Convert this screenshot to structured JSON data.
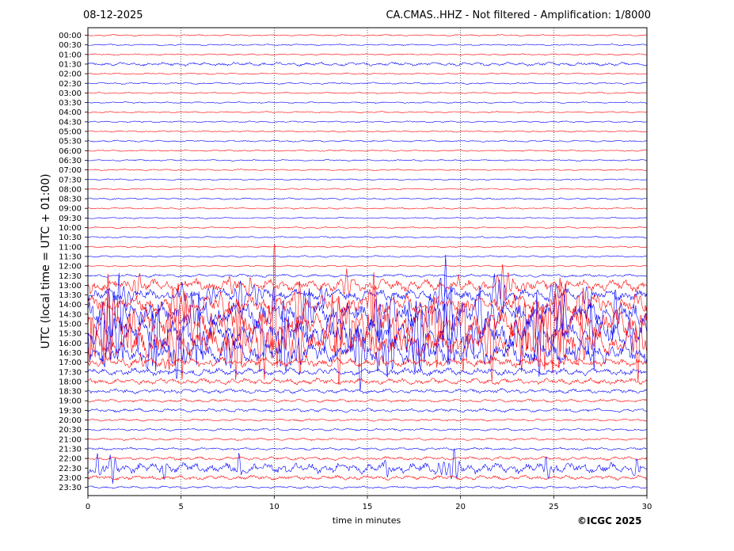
{
  "header": {
    "date": "08-12-2025",
    "station_info": "CA.CMAS..HHZ - Not filtered - Amplification: 1/8000"
  },
  "credit": "©ICGC 2025",
  "chart_data": {
    "type": "line",
    "title": "CA.CMAS..HHZ - Not filtered - Amplification: 1/8000",
    "date": "08-12-2025",
    "xlabel": "time in minutes",
    "ylabel": "UTC (local time = UTC + 01:00)",
    "xlim": [
      0,
      30
    ],
    "x_ticks": [
      0,
      5,
      10,
      15,
      20,
      25,
      30
    ],
    "grid": "vertical dotted at x ticks",
    "trace_colors": [
      "#ff0000",
      "#0000ff"
    ],
    "rows": [
      "00:00",
      "00:30",
      "01:00",
      "01:30",
      "02:00",
      "02:30",
      "03:00",
      "03:30",
      "04:00",
      "04:30",
      "05:00",
      "05:30",
      "06:00",
      "06:30",
      "07:00",
      "07:30",
      "08:00",
      "08:30",
      "09:00",
      "09:30",
      "10:00",
      "10:30",
      "11:00",
      "11:30",
      "12:00",
      "12:30",
      "13:00",
      "13:30",
      "14:00",
      "14:30",
      "15:00",
      "15:30",
      "16:00",
      "16:30",
      "17:00",
      "17:30",
      "18:00",
      "18:30",
      "19:00",
      "19:30",
      "20:00",
      "20:30",
      "21:00",
      "21:30",
      "22:00",
      "22:30",
      "23:00",
      "23:30"
    ],
    "activity_level": [
      0.5,
      0.5,
      0.5,
      1.2,
      0.5,
      0.6,
      0.5,
      0.5,
      0.5,
      0.5,
      0.5,
      0.6,
      0.5,
      0.5,
      0.5,
      0.5,
      0.5,
      0.6,
      0.5,
      0.5,
      0.5,
      0.6,
      0.5,
      0.6,
      0.5,
      1.0,
      4,
      4,
      6,
      8,
      10,
      9,
      9,
      7,
      3,
      2.5,
      2,
      1.5,
      1,
      1.2,
      0.8,
      0.8,
      0.8,
      0.9,
      1.2,
      3.5,
      1.5,
      0.8
    ]
  }
}
